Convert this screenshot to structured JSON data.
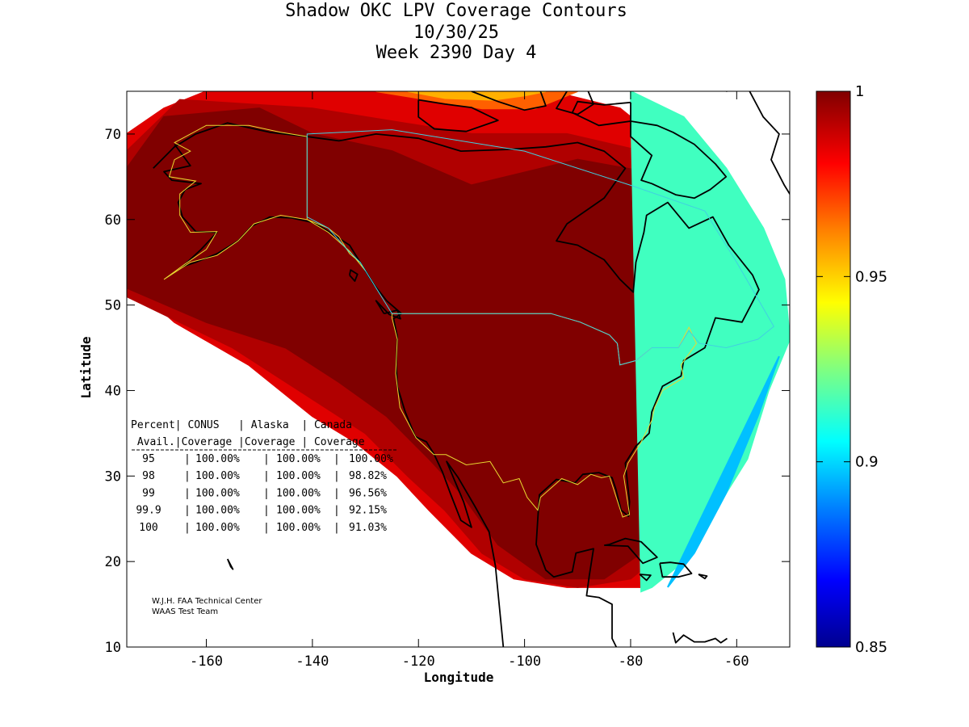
{
  "chart_data": {
    "type": "heatmap",
    "title_lines": [
      "Shadow OKC LPV Coverage Contours",
      "10/30/25",
      "Week 2390 Day 4"
    ],
    "xlabel": "Longitude",
    "ylabel": "Latitude",
    "xlim": [
      -175,
      -50
    ],
    "ylim": [
      10,
      75
    ],
    "xticks": [
      -160,
      -140,
      -120,
      -100,
      -80,
      -60
    ],
    "yticks": [
      10,
      20,
      30,
      40,
      50,
      60,
      70
    ],
    "colorbar": {
      "range": [
        0.85,
        1
      ],
      "ticks": [
        {
          "value": 0.85,
          "label": "0.85"
        },
        {
          "value": 0.9,
          "label": "0.9"
        },
        {
          "value": 0.95,
          "label": "0.95"
        },
        {
          "value": 1,
          "label": "1"
        }
      ],
      "colormap": [
        "#00008f",
        "#0000ff",
        "#0080ff",
        "#00ffff",
        "#80ff80",
        "#ffff00",
        "#ff8000",
        "#ff0000",
        "#800000"
      ]
    },
    "coverage_table": {
      "header_row1": "Percent| CONUS   | Alaska  | Canada",
      "header_row2": " Avail.|Coverage |Coverage | Coverage",
      "rows": [
        {
          "percent": "95",
          "conus": "100.00%",
          "alaska": "100.00%",
          "canada": "100.00%"
        },
        {
          "percent": "98",
          "conus": "100.00%",
          "alaska": "100.00%",
          "canada": "98.82%"
        },
        {
          "percent": "99",
          "conus": "100.00%",
          "alaska": "100.00%",
          "canada": "96.56%"
        },
        {
          "percent": "99.9",
          "conus": "100.00%",
          "alaska": "100.00%",
          "canada": "92.15%"
        },
        {
          "percent": "100",
          "conus": "100.00%",
          "alaska": "100.00%",
          "canada": "91.03%"
        }
      ]
    },
    "credit_lines": [
      "W.J.H. FAA Technical Center",
      "WAAS Test Team"
    ],
    "coverage_contours": [
      {
        "level": 1.0,
        "color": "#800000",
        "polygon": [
          [
            -175,
            66
          ],
          [
            -168,
            72
          ],
          [
            -150,
            73
          ],
          [
            -140,
            70
          ],
          [
            -125,
            68
          ],
          [
            -110,
            64
          ],
          [
            -90,
            67
          ],
          [
            -72,
            65
          ],
          [
            -62,
            57
          ],
          [
            -56,
            52
          ],
          [
            -54,
            45
          ],
          [
            -60,
            38
          ],
          [
            -66,
            32
          ],
          [
            -72,
            25
          ],
          [
            -78,
            21
          ],
          [
            -85,
            18
          ],
          [
            -96,
            18
          ],
          [
            -105,
            22
          ],
          [
            -112,
            28
          ],
          [
            -118,
            32
          ],
          [
            -126,
            37
          ],
          [
            -135,
            41
          ],
          [
            -145,
            45
          ],
          [
            -160,
            48
          ],
          [
            -175,
            52
          ]
        ]
      },
      {
        "level": 0.99,
        "color": "#b00000",
        "polygon": [
          [
            -175,
            68
          ],
          [
            -165,
            74
          ],
          [
            -140,
            73
          ],
          [
            -110,
            70
          ],
          [
            -92,
            70
          ],
          [
            -78,
            68
          ],
          [
            -66,
            63
          ],
          [
            -58,
            57
          ],
          [
            -52,
            50
          ],
          [
            -52,
            46
          ],
          [
            -58,
            37
          ],
          [
            -64,
            30
          ],
          [
            -72,
            22
          ],
          [
            -80,
            18
          ],
          [
            -90,
            17
          ],
          [
            -100,
            18
          ],
          [
            -108,
            21
          ],
          [
            -115,
            26
          ],
          [
            -122,
            30
          ],
          [
            -130,
            35
          ],
          [
            -140,
            39
          ],
          [
            -155,
            45
          ],
          [
            -175,
            51
          ]
        ]
      },
      {
        "level": 0.98,
        "color": "#e00000",
        "polygon": [
          [
            -175,
            70
          ],
          [
            -168,
            73
          ],
          [
            -160,
            75
          ],
          [
            -130,
            75
          ],
          [
            -105,
            75
          ],
          [
            -95,
            75
          ],
          [
            -82,
            73
          ],
          [
            -76,
            70
          ],
          [
            -68,
            66
          ],
          [
            -60,
            60
          ],
          [
            -54,
            54
          ],
          [
            -51,
            50
          ],
          [
            -51,
            46
          ],
          [
            -55,
            41
          ],
          [
            -60,
            34
          ],
          [
            -66,
            26
          ],
          [
            -72,
            20
          ],
          [
            -78,
            17
          ],
          [
            -92,
            17
          ],
          [
            -102,
            18
          ],
          [
            -110,
            21
          ],
          [
            -118,
            26
          ],
          [
            -124,
            30
          ],
          [
            -132,
            34
          ],
          [
            -140,
            37
          ],
          [
            -152,
            43
          ],
          [
            -166,
            48
          ],
          [
            -175,
            53
          ]
        ]
      },
      {
        "level": 0.965,
        "color": "#ff6000",
        "polygon": [
          [
            -128,
            75
          ],
          [
            -118,
            74
          ],
          [
            -108,
            73
          ],
          [
            -98,
            73
          ],
          [
            -90,
            75
          ]
        ]
      },
      {
        "level": 0.95,
        "color": "#ffb000",
        "polygon": [
          [
            -122,
            75
          ],
          [
            -115,
            74.2
          ],
          [
            -106,
            74
          ],
          [
            -100,
            74.5
          ],
          [
            -96,
            75
          ]
        ]
      },
      {
        "level": 0.92,
        "color": "#40ffc0",
        "polygon": [
          [
            -80,
            75
          ],
          [
            -70,
            72
          ],
          [
            -62,
            66
          ],
          [
            -55,
            59
          ],
          [
            -51,
            53
          ],
          [
            -50,
            46
          ],
          [
            -54,
            40
          ],
          [
            -58,
            32
          ],
          [
            -64,
            26
          ],
          [
            -70,
            20
          ],
          [
            -76,
            17
          ],
          [
            -78,
            16.5
          ]
        ]
      },
      {
        "level": 0.9,
        "color": "#00c0ff",
        "polygon": [
          [
            -52,
            44
          ],
          [
            -56,
            37
          ],
          [
            -62,
            28
          ],
          [
            -68,
            21
          ],
          [
            -73,
            17
          ]
        ]
      }
    ]
  }
}
